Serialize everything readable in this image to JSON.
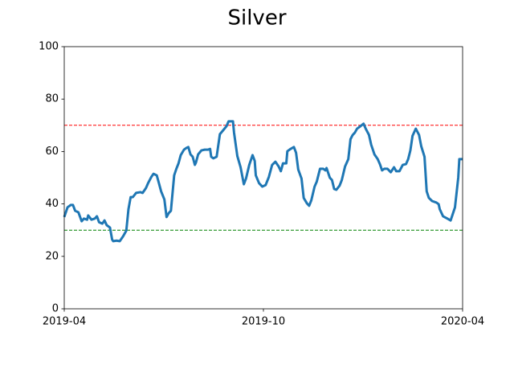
{
  "chart_data": {
    "type": "line",
    "title": "Silver",
    "x": [
      0,
      3,
      6,
      8,
      10,
      13,
      16,
      18,
      21,
      22,
      25,
      28,
      30,
      32,
      35,
      37,
      39,
      42,
      44,
      45,
      48,
      51,
      54,
      57,
      59,
      61,
      63,
      66,
      70,
      72,
      75,
      77,
      80,
      82,
      85,
      87,
      89,
      92,
      94,
      96,
      98,
      101,
      103,
      105,
      107,
      110,
      112,
      114,
      116,
      118,
      120,
      121,
      123,
      126,
      129,
      132,
      134,
      135,
      137,
      140,
      143,
      146,
      149,
      151,
      155,
      156,
      159,
      162,
      165,
      167,
      170,
      173,
      175,
      176,
      179,
      182,
      185,
      188,
      191,
      194,
      197,
      199,
      201,
      204,
      205,
      208,
      211,
      213,
      215,
      218,
      220,
      223,
      225,
      227,
      230,
      232,
      235,
      238,
      240,
      241,
      244,
      246,
      248,
      250,
      253,
      255,
      258,
      261,
      263,
      265,
      267,
      269,
      272,
      275,
      277,
      280,
      282,
      285,
      288,
      290,
      292,
      294,
      297,
      300,
      303,
      305,
      308,
      311,
      314,
      316,
      318,
      320,
      323,
      326,
      328,
      331,
      333,
      335,
      338,
      342,
      344,
      345,
      348,
      352,
      355,
      359,
      362,
      363,
      366
    ],
    "values": [
      35,
      38.7,
      39.6,
      39.6,
      37.4,
      36.8,
      33.4,
      34.4,
      34,
      35.6,
      34,
      34.4,
      35.3,
      33,
      32.5,
      33.7,
      31.9,
      31,
      26.4,
      25.8,
      26,
      25.8,
      27.6,
      29.8,
      38,
      42.6,
      42.6,
      44.2,
      44.5,
      44.2,
      46,
      47.9,
      50.3,
      51.5,
      50.9,
      47.9,
      44.8,
      41.7,
      35,
      36.5,
      37.4,
      50.9,
      53.4,
      55.5,
      58.6,
      60.7,
      61.3,
      61.7,
      58.9,
      58,
      54.9,
      55.8,
      58.9,
      60.4,
      60.7,
      60.7,
      61,
      58,
      57.4,
      58,
      66.6,
      68.1,
      69.6,
      71.5,
      71.5,
      67.2,
      58.3,
      54,
      47.5,
      49.7,
      54.9,
      58.6,
      56.4,
      50.9,
      47.9,
      46.6,
      47.2,
      50.3,
      54.9,
      56.1,
      54.3,
      52.5,
      55.5,
      55.5,
      60.1,
      61,
      61.7,
      59.5,
      53.1,
      49.7,
      42.3,
      40.2,
      39.3,
      41.4,
      46.6,
      48.5,
      53.4,
      53.4,
      52.8,
      53.7,
      50,
      49.1,
      45.7,
      45.4,
      47,
      49.1,
      54.3,
      57.1,
      64.7,
      66.3,
      67.2,
      68.7,
      69.6,
      70.6,
      68.7,
      66.3,
      62.6,
      58.9,
      57.1,
      55.2,
      52.8,
      53.4,
      53.4,
      52.1,
      54,
      52.5,
      52.5,
      54.9,
      55.2,
      57.1,
      60.4,
      66,
      68.7,
      66.3,
      62,
      58,
      44.8,
      42.3,
      41.1,
      40.5,
      39.9,
      38,
      35.3,
      34.4,
      33.7,
      38.7,
      50,
      57.1,
      57.1
    ],
    "color": "#1f77b4",
    "xlim": [
      0,
      366
    ],
    "xticks": [
      {
        "value": 0,
        "label": "2019-04"
      },
      {
        "value": 183,
        "label": "2019-10"
      },
      {
        "value": 366,
        "label": "2020-04"
      }
    ],
    "ylim": [
      0,
      100
    ],
    "yticks": [
      0,
      20,
      40,
      60,
      80,
      100
    ],
    "reference_lines": [
      {
        "value": 70,
        "color": "#ff0000"
      },
      {
        "value": 30,
        "color": "#008000"
      }
    ]
  }
}
